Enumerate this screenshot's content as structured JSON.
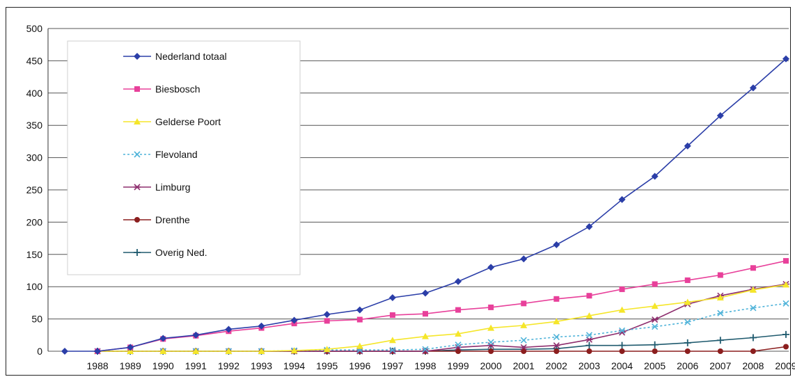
{
  "chart_data": {
    "type": "line",
    "title": "",
    "xlabel": "",
    "ylabel": "",
    "ylim": [
      0,
      500
    ],
    "yticks": [
      0,
      50,
      100,
      150,
      200,
      250,
      300,
      350,
      400,
      450,
      500
    ],
    "x_tick_labels": [
      "1988",
      "1989",
      "1990",
      "1991",
      "1992",
      "1993",
      "1994",
      "1995",
      "1996",
      "1997",
      "1998",
      "1999",
      "2000",
      "2001",
      "2002",
      "2003",
      "2004",
      "2005",
      "2006",
      "2007",
      "2008",
      "2009"
    ],
    "x": [
      1987,
      1988,
      1989,
      1990,
      1991,
      1992,
      1993,
      1994,
      1995,
      1996,
      1997,
      1998,
      1999,
      2000,
      2001,
      2002,
      2003,
      2004,
      2005,
      2006,
      2007,
      2008,
      2009
    ],
    "grid": true,
    "legend_position": "top-left",
    "series": [
      {
        "name": "Nederland totaal",
        "color": "#2b3ea8",
        "marker": "diamond",
        "values": [
          0,
          0,
          6,
          20,
          25,
          34,
          39,
          48,
          57,
          64,
          83,
          90,
          108,
          130,
          143,
          165,
          193,
          235,
          271,
          318,
          365,
          408,
          453
        ]
      },
      {
        "name": "Biesbosch",
        "color": "#e8409a",
        "marker": "square",
        "values": [
          null,
          0,
          6,
          19,
          24,
          31,
          36,
          43,
          47,
          49,
          56,
          58,
          64,
          68,
          74,
          81,
          86,
          96,
          104,
          110,
          118,
          129,
          140
        ]
      },
      {
        "name": "Gelderse Poort",
        "color": "#f5e62a",
        "marker": "triangle",
        "values": [
          null,
          0,
          0,
          0,
          0,
          0,
          0,
          1,
          3,
          8,
          17,
          23,
          27,
          36,
          40,
          46,
          55,
          64,
          70,
          76,
          83,
          95,
          103
        ]
      },
      {
        "name": "Flevoland",
        "color": "#4fb3d9",
        "marker": "x",
        "values": [
          null,
          0,
          0,
          0,
          0,
          0,
          0,
          1,
          2,
          2,
          2,
          3,
          10,
          14,
          17,
          22,
          25,
          32,
          38,
          45,
          59,
          67,
          74
        ]
      },
      {
        "name": "Limburg",
        "color": "#8e2e6e",
        "marker": "star",
        "values": [
          null,
          0,
          0,
          0,
          0,
          0,
          0,
          0,
          0,
          0,
          0,
          0,
          6,
          9,
          6,
          9,
          18,
          29,
          49,
          73,
          86,
          96,
          104
        ]
      },
      {
        "name": "Drenthe",
        "color": "#8b1e1e",
        "marker": "circle",
        "values": [
          null,
          0,
          0,
          0,
          0,
          0,
          0,
          0,
          0,
          0,
          0,
          0,
          0,
          0,
          0,
          0,
          0,
          0,
          0,
          0,
          0,
          0,
          7
        ]
      },
      {
        "name": "Overig Ned.",
        "color": "#1f5a6e",
        "marker": "plus",
        "values": [
          null,
          0,
          0,
          0,
          0,
          0,
          0,
          0,
          0,
          0,
          0,
          0,
          2,
          3,
          3,
          4,
          9,
          9,
          10,
          13,
          17,
          21,
          26
        ]
      }
    ]
  }
}
